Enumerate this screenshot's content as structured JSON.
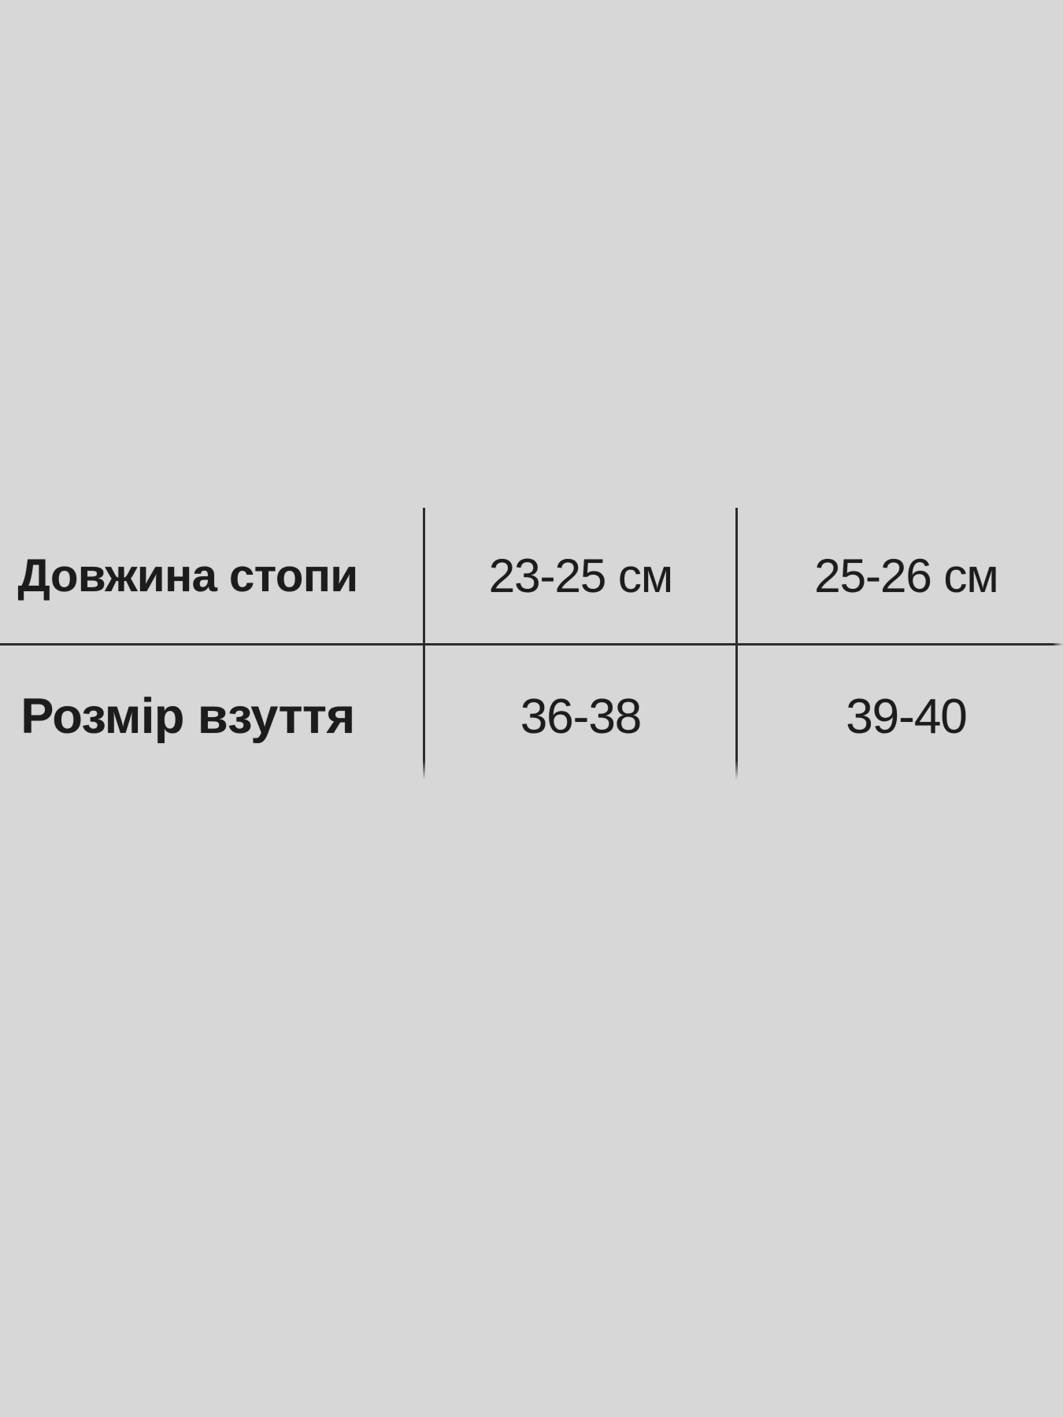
{
  "size_chart": {
    "rows": [
      {
        "label": "Довжина стопи",
        "values": [
          "23-25 см",
          "25-26 см"
        ]
      },
      {
        "label": "Розмір взуття",
        "values": [
          "36-38",
          "39-40"
        ]
      }
    ]
  },
  "colors": {
    "background": "#d7d7d7",
    "line": "#2d2d2d",
    "text": "#1c1c1c"
  }
}
